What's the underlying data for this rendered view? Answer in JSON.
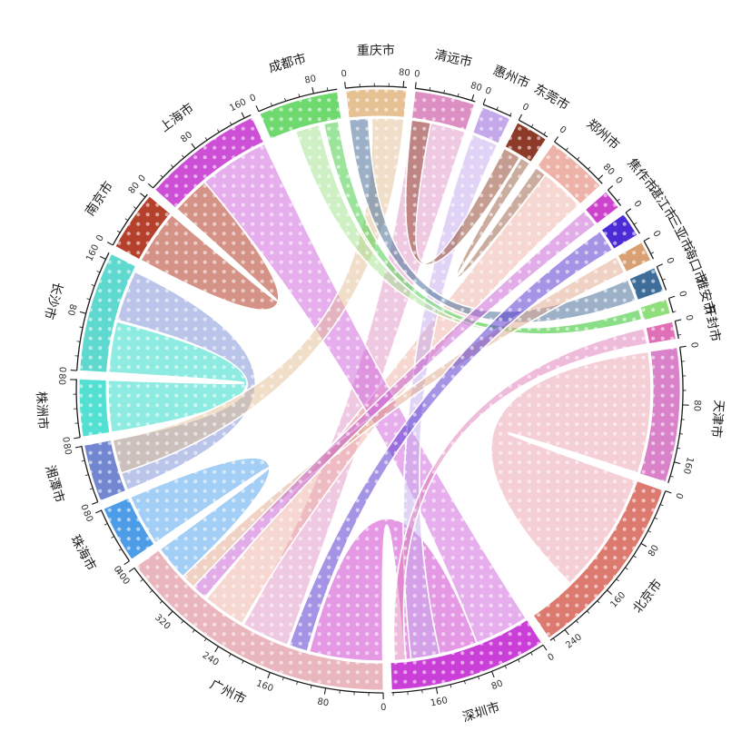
{
  "chart_data": {
    "type": "chord",
    "title": "",
    "legend_position": "none",
    "grid": false,
    "texture": "white-dot-grid-overlay",
    "axis": {
      "minor_tick_step": 20,
      "major_tick_step": 80,
      "tick_color": "#1a1a1a"
    },
    "layout": {
      "start_angle_deg": -23.5,
      "sector_gap_deg": 1.6,
      "outer_radius": 334,
      "band_inner_radius": 301,
      "band_outer_radius": 331,
      "chord_radius": 299,
      "flip_label_range_deg": [
        115,
        295
      ]
    },
    "cities": [
      {
        "name": "成都市",
        "total": 113,
        "color": "#6fd96f",
        "tick_labels": [
          0,
          80
        ]
      },
      {
        "name": "重庆市",
        "total": 85,
        "color": "#e6c193",
        "tick_labels": [
          0,
          80
        ]
      },
      {
        "name": "清远市",
        "total": 85,
        "color": "#dd8fc3",
        "tick_labels": [
          0,
          80
        ]
      },
      {
        "name": "惠州市",
        "total": 42,
        "color": "#c4a8ea",
        "tick_labels": [
          0
        ]
      },
      {
        "name": "东莞市",
        "total": 46,
        "color": "#8e3a28",
        "tick_labels": [
          0
        ]
      },
      {
        "name": "郑州市",
        "total": 88,
        "color": "#eeb3a8",
        "tick_labels": [
          0,
          80
        ]
      },
      {
        "name": "焦作市",
        "total": 28,
        "color": "#cc44cc",
        "tick_labels": [
          0
        ]
      },
      {
        "name": "湛江市",
        "total": 35,
        "color": "#4b2bd6",
        "tick_labels": [
          0
        ]
      },
      {
        "name": "三亚市",
        "total": 28,
        "color": "#d9a173",
        "tick_labels": [
          0
        ]
      },
      {
        "name": "海口市",
        "total": 35,
        "color": "#3f6d99",
        "tick_labels": [
          0
        ]
      },
      {
        "name": "雅安市",
        "total": 21,
        "color": "#8ede7a",
        "tick_labels": [
          0
        ]
      },
      {
        "name": "开封市",
        "total": 25,
        "color": "#e06fb8",
        "tick_labels": [
          0
        ]
      },
      {
        "name": "天津市",
        "total": 190,
        "color": "#d982ca",
        "tick_labels": [
          0,
          80,
          160
        ]
      },
      {
        "name": "北京市",
        "total": 265,
        "color": "#dd7a70",
        "tick_labels": [
          0,
          80,
          160,
          240
        ]
      },
      {
        "name": "深圳市",
        "total": 222,
        "color": "#cb3fd9",
        "tick_labels": [
          0,
          80,
          160
        ]
      },
      {
        "name": "广州市",
        "total": 400,
        "color": "#eab6be",
        "tick_labels": [
          0,
          80,
          160,
          240,
          320,
          400
        ]
      },
      {
        "name": "珠海市",
        "total": 81,
        "color": "#4d9ce8",
        "tick_labels": [
          0,
          80
        ]
      },
      {
        "name": "湘潭市",
        "total": 81,
        "color": "#7287cf",
        "tick_labels": [
          0,
          80
        ]
      },
      {
        "name": "株洲市",
        "total": 81,
        "color": "#52e0d2",
        "tick_labels": [
          0,
          80
        ]
      },
      {
        "name": "长沙市",
        "total": 170,
        "color": "#5fd9cf",
        "tick_labels": [
          0,
          80,
          160
        ]
      },
      {
        "name": "南京市",
        "total": 85,
        "color": "#b5402c",
        "tick_labels": [
          0,
          80
        ]
      },
      {
        "name": "上海市",
        "total": 170,
        "color": "#cc4fd6",
        "tick_labels": [
          0,
          80,
          160
        ]
      }
    ],
    "chords": [
      {
        "source": "天津市",
        "s0": 0,
        "s1": 190,
        "target": "北京市",
        "t0": 0,
        "t1": 190,
        "color": "#ec9fae",
        "opacity": 0.5
      },
      {
        "source": "株洲市",
        "s0": 0,
        "s1": 81,
        "target": "长沙市",
        "t0": 0,
        "t1": 80,
        "color": "#49dfce",
        "opacity": 0.62
      },
      {
        "source": "湘潭市",
        "s0": 0,
        "s1": 81,
        "target": "长沙市",
        "t0": 82,
        "t1": 162,
        "color": "#7b90d4",
        "opacity": 0.52
      },
      {
        "source": "深圳市",
        "s0": 85,
        "s1": 200,
        "target": "广州市",
        "t0": 0,
        "t1": 115,
        "color": "#d24fd2",
        "opacity": 0.58
      },
      {
        "source": "广州市",
        "s0": 345,
        "s1": 400,
        "target": "珠海市",
        "t0": 0,
        "t1": 81,
        "color": "#57a6ec",
        "opacity": 0.55
      },
      {
        "source": "清远市",
        "s0": 0,
        "s1": 85,
        "target": "广州市",
        "t0": 150,
        "t1": 225,
        "color": "#dd8fc3",
        "opacity": 0.48
      },
      {
        "source": "郑州市",
        "s0": 18,
        "s1": 88,
        "target": "广州市",
        "t0": 228,
        "t1": 295,
        "color": "#ecab9e",
        "opacity": 0.48
      },
      {
        "source": "南京市",
        "s0": 0,
        "s1": 85,
        "target": "上海市",
        "t0": 0,
        "t1": 60,
        "color": "#b5452f",
        "opacity": 0.58
      },
      {
        "source": "上海市",
        "s0": 60,
        "s1": 170,
        "target": "深圳市",
        "t0": 0,
        "t1": 85,
        "color": "#cf63dd",
        "opacity": 0.52
      },
      {
        "source": "惠州市",
        "s0": 0,
        "s1": 42,
        "target": "深圳市",
        "t0": 145,
        "t1": 190,
        "color": "#c3a7eb",
        "opacity": 0.5
      },
      {
        "source": "重庆市",
        "s0": 35,
        "s1": 85,
        "target": "湘潭市",
        "t0": 28,
        "t1": 81,
        "color": "#e0ba8c",
        "opacity": 0.48
      },
      {
        "source": "成都市",
        "s0": 40,
        "s1": 78,
        "target": "雅安市",
        "t0": 0,
        "t1": 21,
        "color": "#9fe089",
        "opacity": 0.5
      },
      {
        "source": "成都市",
        "s0": 85,
        "s1": 108,
        "target": "雅安市",
        "t0": 2,
        "t1": 19,
        "color": "#5fd45f",
        "opacity": 0.62
      },
      {
        "source": "重庆市",
        "s0": 0,
        "s1": 30,
        "target": "海口市",
        "t0": 0,
        "t1": 35,
        "color": "#55799f",
        "opacity": 0.58
      },
      {
        "source": "东莞市",
        "s0": 30,
        "s1": 46,
        "target": "郑州市",
        "t0": 0,
        "t1": 18,
        "color": "#a06a50",
        "opacity": 0.55
      },
      {
        "source": "清远市",
        "s0": 0,
        "s1": 30,
        "target": "东莞市",
        "t0": 0,
        "t1": 28,
        "color": "#9b5540",
        "opacity": 0.58
      },
      {
        "source": "三亚市",
        "s0": 0,
        "s1": 28,
        "target": "广州市",
        "t0": 322,
        "t1": 345,
        "color": "#e0a687",
        "opacity": 0.5
      },
      {
        "source": "焦作市",
        "s0": 0,
        "s1": 28,
        "target": "广州市",
        "t0": 298,
        "t1": 322,
        "color": "#c45ad0",
        "opacity": 0.5
      },
      {
        "source": "湛江市",
        "s0": 0,
        "s1": 35,
        "target": "广州市",
        "t0": 118,
        "t1": 148,
        "color": "#5b3ad0",
        "opacity": 0.55
      },
      {
        "source": "开封市",
        "s0": 0,
        "s1": 25,
        "target": "深圳市",
        "t0": 198,
        "t1": 216,
        "color": "#e078b8",
        "opacity": 0.5
      }
    ]
  }
}
